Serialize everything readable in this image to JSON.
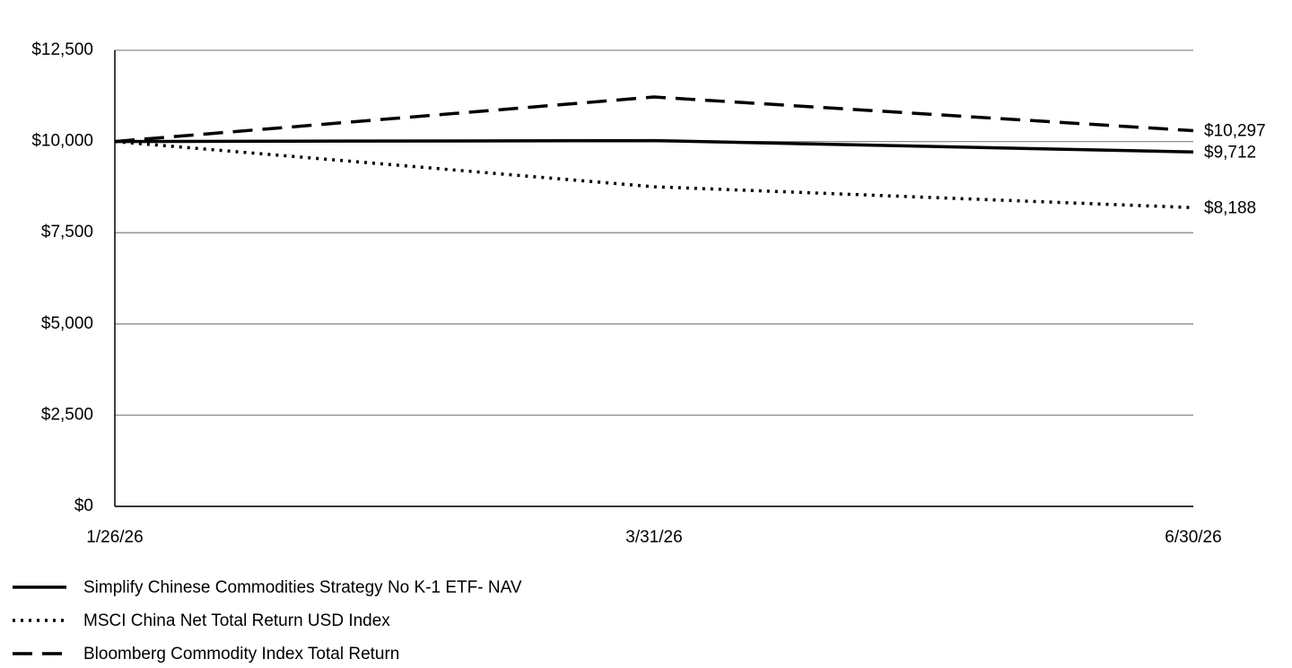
{
  "chart_data": {
    "type": "line",
    "categories": [
      "1/26/26",
      "3/31/26",
      "6/30/26"
    ],
    "series": [
      {
        "name": "Simplify Chinese Commodities Strategy No K-1 ETF- NAV",
        "color": "#000000",
        "style": "solid",
        "values": [
          10000,
          10025,
          9712
        ],
        "value_labels": [
          null,
          null,
          "$9,712"
        ]
      },
      {
        "name": "MSCI China Net Total Return USD Index",
        "color": "#000000",
        "style": "dotted",
        "values": [
          10000,
          8760,
          8188
        ],
        "value_labels": [
          null,
          null,
          "$8,188"
        ]
      },
      {
        "name": "Bloomberg Commodity Index Total Return",
        "color": "#000000",
        "style": "dashed",
        "values": [
          10000,
          11220,
          10297
        ],
        "value_labels": [
          null,
          null,
          "$10,297"
        ]
      }
    ],
    "ylim": [
      0,
      12500
    ],
    "yticks": [
      {
        "value": 0,
        "label": "$0"
      },
      {
        "value": 2500,
        "label": "$2,500"
      },
      {
        "value": 5000,
        "label": "$5,000"
      },
      {
        "value": 7500,
        "label": "$7,500"
      },
      {
        "value": 10000,
        "label": "$10,000"
      },
      {
        "value": 12500,
        "label": "$12,500"
      }
    ],
    "grid": true
  }
}
